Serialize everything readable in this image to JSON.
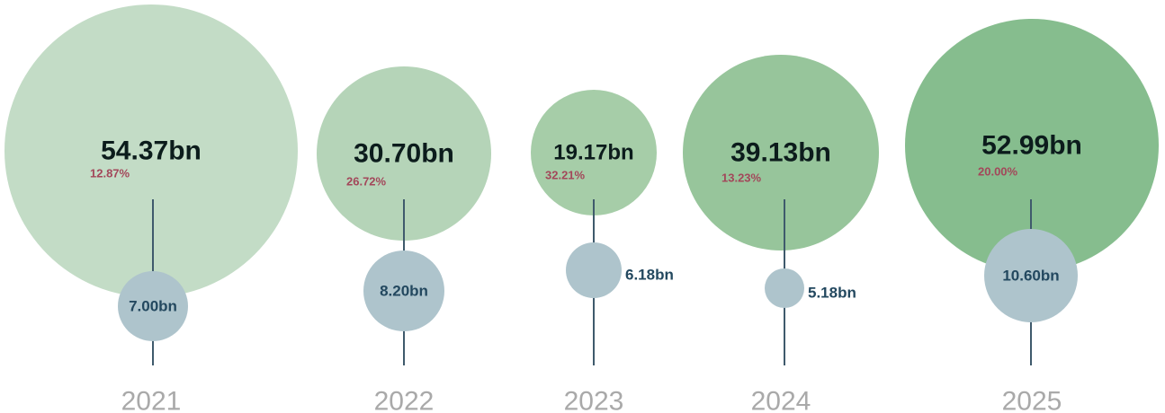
{
  "chart_data": {
    "type": "bubble",
    "title": "",
    "categories": [
      "2021",
      "2022",
      "2023",
      "2024",
      "2025"
    ],
    "series": [
      {
        "values": [
          54.37,
          30.7,
          19.17,
          39.13,
          52.99
        ],
        "labels": [
          "54.37bn",
          "30.70bn",
          "19.17bn",
          "39.13bn",
          "52.99bn"
        ],
        "percent_labels": [
          "12.87%",
          "26.72%",
          "32.21%",
          "13.23%",
          "20.00%"
        ]
      },
      {
        "values": [
          7.0,
          8.2,
          6.18,
          5.18,
          10.6
        ],
        "labels": [
          "7.00bn",
          "8.20bn",
          "6.18bn",
          "5.18bn",
          "10.60bn"
        ]
      }
    ],
    "colors": {
      "large_bubbles": [
        "#c3dcc6",
        "#b5d4b8",
        "#a6cda8",
        "#97c59b",
        "#86bd8e"
      ],
      "small_bubble": "#aec4cc",
      "stem": "#3f5a6c",
      "big_label": "#0c1c1c",
      "percent_label": "#a3475a",
      "small_label": "#23485f",
      "year_label": "#a9a9a9"
    }
  }
}
